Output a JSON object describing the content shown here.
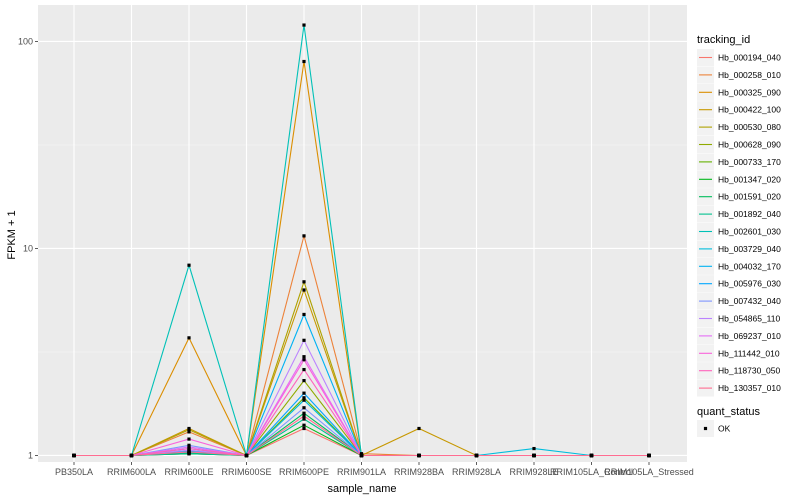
{
  "chart_data": {
    "type": "line",
    "title": "",
    "xlabel": "sample_name",
    "ylabel": "FPKM + 1",
    "y_scale": "log10",
    "ylim": [
      0.93,
      150
    ],
    "y_ticks": [
      1,
      10,
      100
    ],
    "y_tick_labels": [
      "1",
      "10",
      "100"
    ],
    "grid": true,
    "categories": [
      "PB350LA",
      "RRIM600LA",
      "RRIM600LE",
      "RRIM600SE",
      "RRIM600PE",
      "RRIM901LA",
      "RRIM928BA",
      "RRIM928LA",
      "RRIM928LE",
      "RRIM105LA_Control",
      "RRIM105LA_Stressed"
    ],
    "legend": {
      "position": "right",
      "color_title": "tracking_id",
      "shape_title": "quant_status",
      "shape_entries": [
        "OK"
      ]
    },
    "series": [
      {
        "name": "Hb_000194_040",
        "color": "#F8766D",
        "values": [
          1,
          1,
          1.02,
          1,
          1.35,
          1,
          1,
          1,
          1,
          1,
          1
        ]
      },
      {
        "name": "Hb_000258_010",
        "color": "#EC8239",
        "values": [
          1,
          1,
          1.3,
          1,
          11.5,
          1.02,
          1,
          1,
          1,
          1,
          1
        ]
      },
      {
        "name": "Hb_000325_090",
        "color": "#DB8E00",
        "values": [
          1,
          1,
          3.7,
          1,
          80,
          1,
          1,
          1,
          1,
          1,
          1
        ]
      },
      {
        "name": "Hb_000422_100",
        "color": "#C79800",
        "values": [
          1,
          1,
          1.35,
          1,
          6.3,
          1,
          1.35,
          1,
          1,
          1,
          1
        ]
      },
      {
        "name": "Hb_000530_080",
        "color": "#AEA200",
        "values": [
          1,
          1,
          1.33,
          1,
          6.9,
          1,
          1,
          1,
          1,
          1,
          1
        ]
      },
      {
        "name": "Hb_000628_090",
        "color": "#8FAA00",
        "values": [
          1,
          1,
          1.05,
          1,
          2.3,
          1,
          1,
          1,
          1,
          1,
          1
        ]
      },
      {
        "name": "Hb_000733_170",
        "color": "#64B200",
        "values": [
          1,
          1,
          1.03,
          1,
          1.9,
          1,
          1,
          1,
          1,
          1,
          1
        ]
      },
      {
        "name": "Hb_001347_020",
        "color": "#00B81B",
        "values": [
          1,
          1,
          1.02,
          1,
          1.4,
          1,
          1,
          1,
          1,
          1,
          1
        ]
      },
      {
        "name": "Hb_001591_020",
        "color": "#00BD5C",
        "values": [
          1,
          1,
          1.03,
          1,
          1.6,
          1,
          1,
          1,
          1,
          1,
          1
        ]
      },
      {
        "name": "Hb_001892_040",
        "color": "#00C08E",
        "values": [
          1,
          1,
          1.02,
          1,
          1.5,
          1,
          1,
          1,
          1,
          1,
          1
        ]
      },
      {
        "name": "Hb_002601_030",
        "color": "#00C1B7",
        "values": [
          1,
          1,
          8.3,
          1,
          120,
          1,
          1,
          1,
          1,
          1,
          1
        ]
      },
      {
        "name": "Hb_003729_040",
        "color": "#00BDDC",
        "values": [
          1,
          1,
          1.04,
          1,
          1.85,
          1,
          1,
          1,
          1.08,
          1,
          1
        ]
      },
      {
        "name": "Hb_004032_170",
        "color": "#00B2F3",
        "values": [
          1,
          1,
          1.05,
          1,
          4.8,
          1,
          1,
          1,
          1,
          1,
          1
        ]
      },
      {
        "name": "Hb_005976_030",
        "color": "#00A6FF",
        "values": [
          1,
          1,
          1.08,
          1,
          2.0,
          1,
          1,
          1,
          1,
          1,
          1
        ]
      },
      {
        "name": "Hb_007432_040",
        "color": "#7F96FF",
        "values": [
          1,
          1,
          1.12,
          1,
          1.7,
          1,
          1,
          1,
          1,
          1,
          1
        ]
      },
      {
        "name": "Hb_054865_110",
        "color": "#BB83FF",
        "values": [
          1,
          1,
          1.06,
          1,
          3.6,
          1,
          1,
          1,
          1,
          1,
          1
        ]
      },
      {
        "name": "Hb_069237_010",
        "color": "#E46DF6",
        "values": [
          1,
          1,
          1.1,
          1,
          3.0,
          1,
          1,
          1,
          1,
          1,
          1
        ]
      },
      {
        "name": "Hb_111442_010",
        "color": "#FA62DB",
        "values": [
          1,
          1,
          1.2,
          1,
          2.9,
          1,
          1,
          1,
          1,
          1,
          1
        ]
      },
      {
        "name": "Hb_118730_050",
        "color": "#FF62BC",
        "values": [
          1,
          1,
          1.08,
          1,
          2.6,
          1,
          1,
          1,
          1,
          1,
          1
        ]
      },
      {
        "name": "Hb_130357_010",
        "color": "#FF6C91",
        "values": [
          1,
          1,
          1.04,
          1,
          1.55,
          1,
          1,
          1,
          1,
          1,
          1
        ]
      }
    ]
  }
}
